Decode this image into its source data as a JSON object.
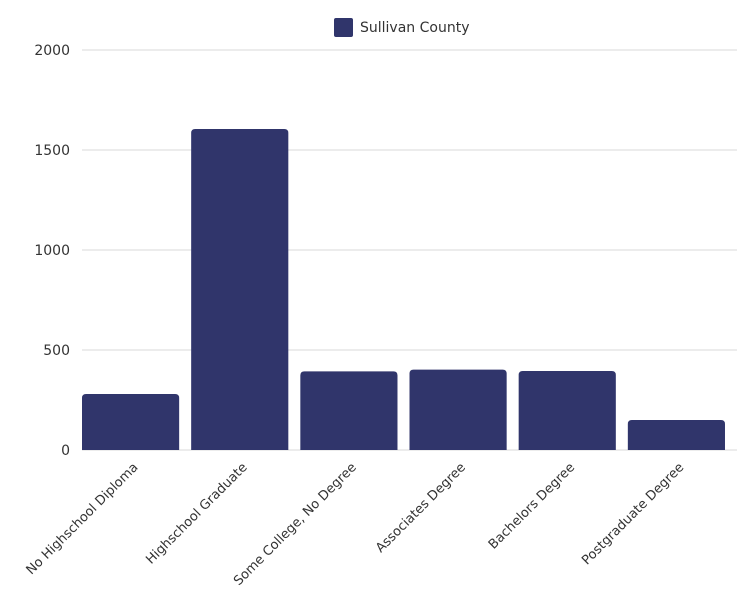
{
  "chart_data": {
    "type": "bar",
    "categories": [
      "No Highschool Diploma",
      "Highschool Graduate",
      "Some College, No Degree",
      "Associates Degree",
      "Bachelors Degree",
      "Postgraduate Degree"
    ],
    "series": [
      {
        "name": "Sullivan County",
        "values": [
          280,
          1605,
          393,
          402,
          395,
          150
        ],
        "color": "#30356b"
      }
    ],
    "ylim": [
      0,
      2000
    ],
    "yticks": [
      0,
      500,
      1000,
      1500,
      2000
    ],
    "grid": true,
    "legend": "top-center"
  }
}
